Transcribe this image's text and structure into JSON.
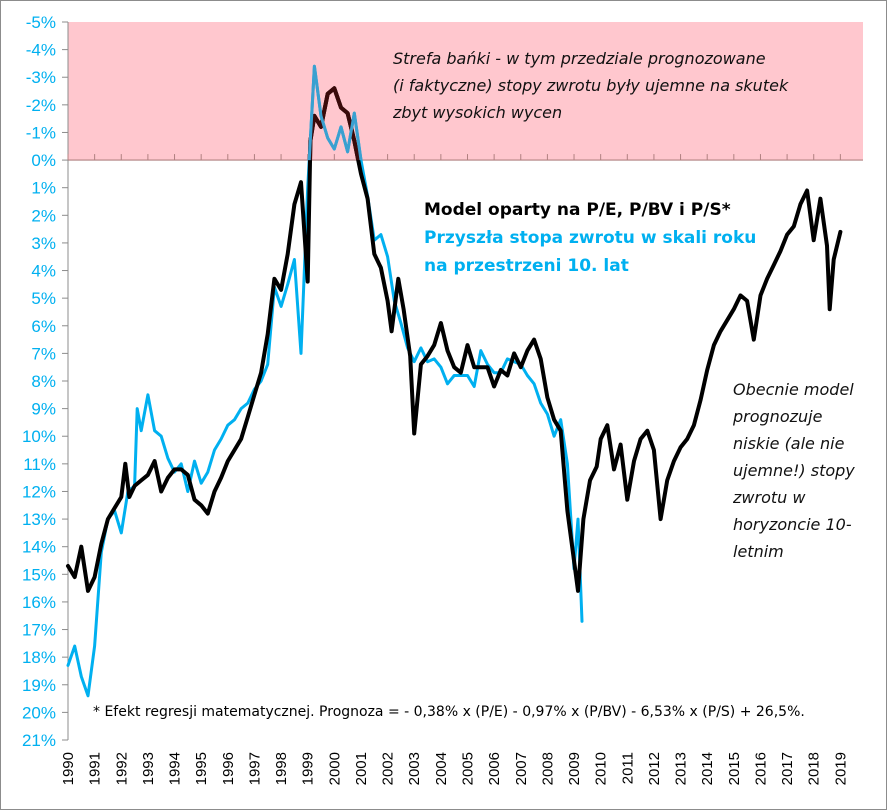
{
  "chart_data": {
    "type": "line",
    "title": "",
    "xlabel": "",
    "ylabel": "",
    "y_inverted": true,
    "ylim": [
      -5,
      21
    ],
    "xlim": [
      1990,
      2020
    ],
    "y_tick_labels": [
      "-5%",
      "-4%",
      "-3%",
      "-2%",
      "-1%",
      "0%",
      "1%",
      "2%",
      "3%",
      "4%",
      "5%",
      "6%",
      "7%",
      "8%",
      "9%",
      "10%",
      "11%",
      "12%",
      "13%",
      "14%",
      "15%",
      "16%",
      "17%",
      "18%",
      "19%",
      "20%",
      "21%"
    ],
    "y_tick_values": [
      -5,
      -4,
      -3,
      -2,
      -1,
      0,
      1,
      2,
      3,
      4,
      5,
      6,
      7,
      8,
      9,
      10,
      11,
      12,
      13,
      14,
      15,
      16,
      17,
      18,
      19,
      20,
      21
    ],
    "x_tick_labels": [
      "1990",
      "1991",
      "1992",
      "1993",
      "1994",
      "1995",
      "1996",
      "1997",
      "1998",
      "1999",
      "2000",
      "2001",
      "2002",
      "2003",
      "2004",
      "2005",
      "2006",
      "2007",
      "2008",
      "2009",
      "2010",
      "2011",
      "2012",
      "2013",
      "2014",
      "2015",
      "2016",
      "2017",
      "2018",
      "2019"
    ],
    "grid": false,
    "shaded_region": {
      "name": "Strefa bańki",
      "y_from": -5,
      "y_to": 0,
      "color": "#ffc7ce"
    },
    "series": [
      {
        "name": "Model oparty na P/E, P/BV i P/S*",
        "color": "#000000",
        "x": [
          1990.0,
          1990.25,
          1990.5,
          1990.75,
          1991.0,
          1991.25,
          1991.5,
          1991.75,
          1992.0,
          1992.15,
          1992.3,
          1992.5,
          1992.75,
          1993.0,
          1993.25,
          1993.5,
          1993.75,
          1994.0,
          1994.25,
          1994.5,
          1994.75,
          1995.0,
          1995.25,
          1995.5,
          1995.75,
          1996.0,
          1996.25,
          1996.5,
          1996.75,
          1997.0,
          1997.25,
          1997.5,
          1997.75,
          1998.0,
          1998.25,
          1998.5,
          1998.75,
          1999.0,
          1999.1,
          1999.25,
          1999.5,
          1999.75,
          2000.0,
          2000.25,
          2000.5,
          2000.75,
          2001.0,
          2001.25,
          2001.5,
          2001.75,
          2002.0,
          2002.15,
          2002.4,
          2002.6,
          2002.85,
          2003.0,
          2003.25,
          2003.5,
          2003.75,
          2004.0,
          2004.25,
          2004.5,
          2004.75,
          2005.0,
          2005.25,
          2005.5,
          2005.75,
          2006.0,
          2006.25,
          2006.5,
          2006.75,
          2007.0,
          2007.25,
          2007.5,
          2007.75,
          2008.0,
          2008.25,
          2008.5,
          2008.75,
          2009.0,
          2009.15,
          2009.35,
          2009.6,
          2009.85,
          2010.0,
          2010.25,
          2010.5,
          2010.75,
          2011.0,
          2011.25,
          2011.5,
          2011.75,
          2012.0,
          2012.25,
          2012.5,
          2012.75,
          2013.0,
          2013.25,
          2013.5,
          2013.75,
          2014.0,
          2014.25,
          2014.5,
          2014.75,
          2015.0,
          2015.25,
          2015.5,
          2015.75,
          2016.0,
          2016.25,
          2016.5,
          2016.75,
          2017.0,
          2017.25,
          2017.5,
          2017.75,
          2018.0,
          2018.25,
          2018.5,
          2018.6,
          2018.75,
          2019.0
        ],
        "values": [
          14.7,
          15.1,
          14.0,
          15.6,
          15.1,
          13.9,
          13.0,
          12.6,
          12.2,
          11.0,
          12.2,
          11.8,
          11.6,
          11.4,
          10.9,
          12.0,
          11.5,
          11.2,
          11.2,
          11.4,
          12.3,
          12.5,
          12.8,
          12.0,
          11.5,
          10.9,
          10.5,
          10.1,
          9.3,
          8.5,
          7.7,
          6.3,
          4.3,
          4.7,
          3.4,
          1.6,
          0.8,
          4.4,
          -0.7,
          -1.6,
          -1.2,
          -2.4,
          -2.6,
          -1.9,
          -1.7,
          -0.7,
          0.5,
          1.4,
          3.4,
          3.9,
          5.1,
          6.2,
          4.3,
          5.4,
          7.1,
          9.9,
          7.4,
          7.1,
          6.7,
          5.9,
          6.9,
          7.5,
          7.7,
          6.7,
          7.5,
          7.5,
          7.5,
          8.2,
          7.6,
          7.8,
          7.0,
          7.5,
          6.9,
          6.5,
          7.2,
          8.6,
          9.4,
          9.8,
          12.7,
          14.5,
          15.6,
          13.0,
          11.6,
          11.1,
          10.1,
          9.6,
          11.2,
          10.3,
          12.3,
          10.9,
          10.1,
          9.8,
          10.5,
          13.0,
          11.6,
          10.9,
          10.4,
          10.1,
          9.6,
          8.7,
          7.6,
          6.7,
          6.2,
          5.8,
          5.4,
          4.9,
          5.1,
          6.5,
          4.9,
          4.3,
          3.8,
          3.3,
          2.7,
          2.4,
          1.6,
          1.1,
          2.9,
          1.4,
          3.1,
          5.4,
          3.6,
          2.6
        ]
      },
      {
        "name": "Przyszła stopa zwrotu w skali roku na przestrzeni 10. lat",
        "color": "#00b0f0",
        "x": [
          1990.0,
          1990.25,
          1990.5,
          1990.75,
          1991.0,
          1991.25,
          1991.5,
          1991.75,
          1992.0,
          1992.25,
          1992.5,
          1992.6,
          1992.75,
          1993.0,
          1993.25,
          1993.5,
          1993.75,
          1994.0,
          1994.25,
          1994.5,
          1994.75,
          1995.0,
          1995.25,
          1995.5,
          1995.75,
          1996.0,
          1996.25,
          1996.5,
          1996.75,
          1997.0,
          1997.25,
          1997.5,
          1997.75,
          1998.0,
          1998.25,
          1998.5,
          1998.75,
          1999.0,
          1999.25,
          1999.5,
          1999.75,
          2000.0,
          2000.25,
          2000.5,
          2000.75,
          2001.0,
          2001.25,
          2001.5,
          2001.75,
          2002.0,
          2002.25,
          2002.5,
          2002.75,
          2003.0,
          2003.25,
          2003.5,
          2003.75,
          2004.0,
          2004.25,
          2004.5,
          2004.75,
          2005.0,
          2005.25,
          2005.5,
          2005.75,
          2006.0,
          2006.25,
          2006.5,
          2006.75,
          2007.0,
          2007.25,
          2007.5,
          2007.75,
          2008.0,
          2008.25,
          2008.5,
          2008.75,
          2009.0,
          2009.15,
          2009.3
        ],
        "values": [
          18.3,
          17.6,
          18.7,
          19.4,
          17.6,
          14.2,
          13.0,
          12.7,
          13.5,
          12.0,
          11.8,
          9.0,
          9.8,
          8.5,
          9.8,
          10.0,
          10.8,
          11.3,
          11.0,
          12.0,
          10.9,
          11.7,
          11.3,
          10.5,
          10.1,
          9.6,
          9.4,
          9.0,
          8.8,
          8.3,
          8.0,
          7.4,
          4.6,
          5.3,
          4.5,
          3.6,
          7.0,
          1.0,
          -3.4,
          -1.6,
          -0.8,
          -0.4,
          -1.2,
          -0.3,
          -1.7,
          0.0,
          1.3,
          2.9,
          2.7,
          3.5,
          5.1,
          5.9,
          6.8,
          7.3,
          6.8,
          7.3,
          7.2,
          7.5,
          8.1,
          7.8,
          7.8,
          7.8,
          8.2,
          6.9,
          7.4,
          7.7,
          7.7,
          7.2,
          7.3,
          7.4,
          7.8,
          8.1,
          8.8,
          9.2,
          10.0,
          9.4,
          11.0,
          14.8,
          13.0,
          16.7
        ]
      }
    ],
    "annotations": [
      "Strefa bańki - w tym przedziale prognozowane (i faktyczne) stopy zwrotu były ujemne na skutek zbyt wysokich wycen",
      "Obecnie model prognozuje niskie (ale nie ujemne!) stopy zwrotu w horyzoncie 10-letnim"
    ],
    "legend_position": "center-right"
  },
  "annotations": {
    "bubble_zone": [
      "Strefa bańki - w tym przedziale prognozowane",
      "(i faktyczne) stopy zwrotu były ujemne na skutek",
      "zbyt wysokich wycen"
    ],
    "current_model": [
      "Obecnie model",
      "prognozuje",
      "niskie (ale nie",
      "ujemne!) stopy",
      "zwrotu w",
      "horyzoncie 10-",
      "letnim"
    ]
  },
  "legend": {
    "model_label": "Model oparty na P/E, P/BV i P/S*",
    "actual_label_line1": "Przyszła stopa zwrotu w skali roku",
    "actual_label_line2": "na przestrzeni 10. lat"
  },
  "footnote": "* Efekt regresji matematycznej. Prognoza = - 0,38% x (P/E) - 0,97% x (P/BV) - 6,53% x (P/S) + 26,5%.",
  "colors": {
    "model": "#000000",
    "actual": "#00b0f0",
    "bubble_zone": "#ffc7ce",
    "axis_labels": "#00b0f0"
  }
}
